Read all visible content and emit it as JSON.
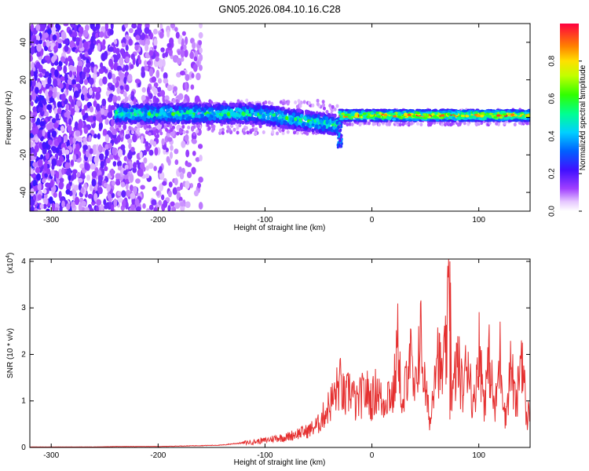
{
  "title": "GN05.2026.084.10.16.C28",
  "colors": {
    "snr_line": "#e53030",
    "frame": "#000000",
    "background": "#ffffff"
  },
  "chart_data": [
    {
      "type": "heatmap",
      "title": "GN05.2026.084.10.16.C28",
      "xlabel": "Height of straight line (km)",
      "ylabel": "Frequency (Hz)",
      "xlim": [
        -320,
        148
      ],
      "ylim": [
        -50,
        50
      ],
      "xticks": [
        -300,
        -200,
        -100,
        0,
        100
      ],
      "yticks": [
        -40,
        -20,
        0,
        20,
        40
      ],
      "colorbar": {
        "label": "Normalized spectral amplitude",
        "range": [
          0.0,
          1.0
        ],
        "ticks": [
          0.0,
          0.2,
          0.4,
          0.6,
          0.8
        ],
        "colormap": "rainbow (white-violet-blue-cyan-green-yellow-red)"
      },
      "description_features": {
        "noise_region_x": [
          -320,
          -160
        ],
        "signal_band_center_hz": 0,
        "signal_start_x": -240,
        "strong_signal_start_x": -30
      }
    },
    {
      "type": "line",
      "xlabel": "Height of straight line (km)",
      "ylabel": "SNR (10 * v/v)",
      "y_scale_label": "(x10^4)",
      "y_multiplier_text": "(x10",
      "y_multiplier_exp": "4",
      "xlim": [
        -320,
        148
      ],
      "ylim": [
        0,
        4.05
      ],
      "xticks": [
        -300,
        -200,
        -100,
        0,
        100
      ],
      "yticks": [
        0,
        1,
        2,
        3,
        4
      ],
      "series": [
        {
          "color": "#e53030",
          "x": [
            -320,
            -300,
            -280,
            -260,
            -240,
            -220,
            -200,
            -180,
            -160,
            -140,
            -130,
            -120,
            -110,
            -100,
            -90,
            -80,
            -70,
            -60,
            -50,
            -45,
            -40,
            -35,
            -30,
            -25,
            -20,
            -15,
            -10,
            -5,
            0,
            5,
            10,
            15,
            20,
            25,
            28,
            30,
            35,
            40,
            45,
            50,
            55,
            60,
            65,
            70,
            73,
            75,
            80,
            85,
            90,
            95,
            100,
            105,
            110,
            115,
            120,
            125,
            130,
            135,
            140,
            145,
            148
          ],
          "y": [
            0.01,
            0.01,
            0.01,
            0.01,
            0.02,
            0.02,
            0.02,
            0.03,
            0.04,
            0.05,
            0.08,
            0.1,
            0.12,
            0.15,
            0.2,
            0.22,
            0.3,
            0.35,
            0.5,
            0.7,
            0.9,
            1.1,
            1.4,
            1.0,
            1.3,
            0.9,
            1.1,
            1.2,
            1.0,
            1.3,
            0.9,
            1.2,
            1.1,
            2.4,
            0.6,
            1.0,
            2.2,
            1.0,
            2.5,
            1.2,
            0.5,
            2.3,
            1.5,
            2.1,
            4.0,
            1.0,
            1.9,
            1.2,
            2.0,
            0.8,
            2.2,
            1.0,
            1.9,
            0.7,
            2.0,
            0.6,
            1.8,
            0.8,
            2.2,
            0.5,
            1.0
          ]
        }
      ]
    }
  ]
}
